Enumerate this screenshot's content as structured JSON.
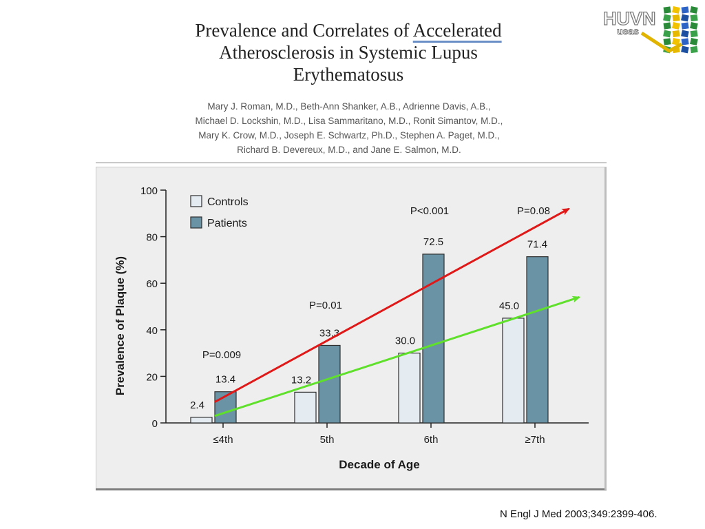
{
  "slide": {
    "title_lines": [
      {
        "pre": "Prevalence and Correlates of ",
        "highlight": "Accelerated"
      },
      {
        "pre": "Atherosclerosis in Systemic Lupus",
        "highlight": ""
      },
      {
        "pre": "Erythematosus",
        "highlight": ""
      }
    ],
    "authors_lines": [
      "Mary J. Roman, M.D., Beth-Ann Shanker, A.B., Adrienne Davis, A.B.,",
      "Michael D. Lockshin, M.D., Lisa Sammaritano, M.D., Ronit Simantov, M.D.,",
      "Mary K. Crow, M.D., Joseph E. Schwartz, Ph.D., Stephen A. Paget, M.D.,",
      "Richard B. Devereux, M.D., and Jane E. Salmon, M.D."
    ],
    "citation": "N Engl J Med 2003;349:2399-406.",
    "logo": {
      "text_top": "HUVN",
      "text_bottom": "ueas",
      "icon": "hospital-logo-icon"
    }
  },
  "colors": {
    "controls": "#e4ecf2",
    "patients": "#6a93a6",
    "bar_stroke": "#2f2f2f",
    "patients_trend": "#e01818",
    "controls_trend": "#5fe02a",
    "panel_bg": "#eeeeee"
  },
  "chart_data": {
    "type": "bar",
    "title": "",
    "xlabel": "Decade of Age",
    "ylabel": "Prevalence of Plaque (%)",
    "ylim": [
      0,
      100
    ],
    "yticks": [
      0,
      20,
      40,
      60,
      80,
      100
    ],
    "categories": [
      "≤4th",
      "5th",
      "6th",
      "≥7th"
    ],
    "series": [
      {
        "name": "Controls",
        "values": [
          2.4,
          13.2,
          30.0,
          45.0
        ],
        "labels": [
          "2.4",
          "13.2",
          "30.0",
          "45.0"
        ]
      },
      {
        "name": "Patients",
        "values": [
          13.4,
          33.3,
          72.5,
          71.4
        ],
        "labels": [
          "13.4",
          "33.3",
          "72.5",
          "71.4"
        ]
      }
    ],
    "p_values": [
      "P=0.009",
      "P=0.01",
      "P<0.001",
      "P=0.08"
    ],
    "legend_position": "top-left",
    "grid": false,
    "trend_arrows": [
      {
        "series": "Patients",
        "color": "red",
        "from": {
          "category_index": 0,
          "y": 9
        },
        "to": {
          "category_index": 3.3,
          "y": 92
        }
      },
      {
        "series": "Controls",
        "color": "green",
        "from": {
          "category_index": 0,
          "y": 3
        },
        "to": {
          "category_index": 3.4,
          "y": 54
        }
      }
    ]
  }
}
